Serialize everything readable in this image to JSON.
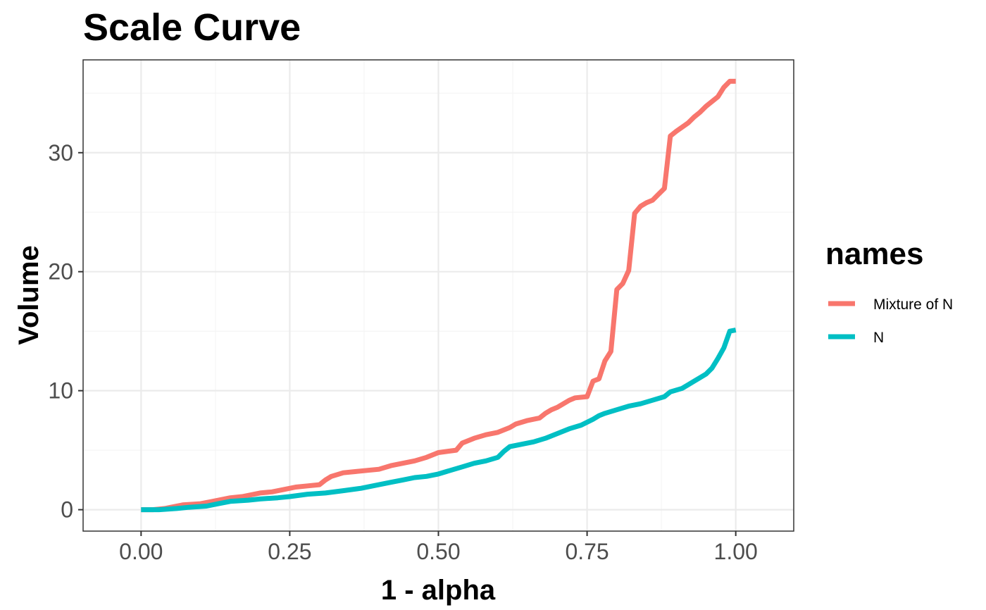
{
  "chart_data": {
    "type": "line",
    "title": "Scale Curve",
    "xlabel": "1 - alpha",
    "ylabel": "Volume",
    "xlim": [
      -0.0975,
      1.0975
    ],
    "ylim": [
      -1.8,
      37.8
    ],
    "x_ticks": [
      0,
      0.25,
      0.5,
      0.75,
      1
    ],
    "x_tick_labels": [
      "0.00",
      "0.25",
      "0.50",
      "0.75",
      "1.00"
    ],
    "y_ticks": [
      0,
      10,
      20,
      30
    ],
    "y_tick_labels": [
      "0",
      "10",
      "20",
      "30"
    ],
    "grid": true,
    "legend": {
      "title": "names",
      "position": "right"
    },
    "series": [
      {
        "name": "Mixture of N",
        "color": "#F8766D",
        "x": [
          0,
          0.02,
          0.04,
          0.05,
          0.07,
          0.1,
          0.12,
          0.15,
          0.17,
          0.2,
          0.22,
          0.24,
          0.26,
          0.28,
          0.3,
          0.31,
          0.32,
          0.34,
          0.36,
          0.38,
          0.4,
          0.42,
          0.44,
          0.46,
          0.48,
          0.5,
          0.53,
          0.54,
          0.56,
          0.58,
          0.6,
          0.62,
          0.63,
          0.65,
          0.67,
          0.68,
          0.69,
          0.7,
          0.72,
          0.73,
          0.75,
          0.76,
          0.77,
          0.78,
          0.79,
          0.8,
          0.81,
          0.82,
          0.83,
          0.84,
          0.85,
          0.86,
          0.87,
          0.88,
          0.89,
          0.9,
          0.92,
          0.93,
          0.94,
          0.95,
          0.96,
          0.97,
          0.98,
          0.99,
          1
        ],
        "values": [
          0,
          0,
          0.1,
          0.2,
          0.4,
          0.5,
          0.7,
          1,
          1.1,
          1.4,
          1.5,
          1.7,
          1.9,
          2,
          2.1,
          2.5,
          2.8,
          3.1,
          3.2,
          3.3,
          3.4,
          3.7,
          3.9,
          4.1,
          4.4,
          4.8,
          5,
          5.6,
          6,
          6.3,
          6.5,
          6.9,
          7.2,
          7.5,
          7.7,
          8.1,
          8.4,
          8.6,
          9.2,
          9.4,
          9.5,
          10.8,
          11,
          12.5,
          13.3,
          18.5,
          19,
          20.1,
          24.9,
          25.5,
          25.8,
          26,
          26.5,
          27,
          31.4,
          31.8,
          32.5,
          33,
          33.4,
          33.9,
          34.3,
          34.7,
          35.5,
          36,
          36
        ]
      },
      {
        "name": "N",
        "color": "#00BFC4",
        "x": [
          0,
          0.03,
          0.06,
          0.08,
          0.11,
          0.13,
          0.15,
          0.18,
          0.2,
          0.23,
          0.25,
          0.28,
          0.31,
          0.34,
          0.37,
          0.4,
          0.42,
          0.44,
          0.46,
          0.48,
          0.5,
          0.52,
          0.54,
          0.56,
          0.58,
          0.6,
          0.61,
          0.62,
          0.64,
          0.66,
          0.68,
          0.7,
          0.72,
          0.74,
          0.76,
          0.77,
          0.78,
          0.8,
          0.82,
          0.84,
          0.86,
          0.88,
          0.89,
          0.91,
          0.92,
          0.93,
          0.94,
          0.95,
          0.96,
          0.97,
          0.98,
          0.99,
          1
        ],
        "values": [
          0,
          0,
          0.1,
          0.2,
          0.3,
          0.5,
          0.7,
          0.8,
          0.9,
          1,
          1.1,
          1.3,
          1.4,
          1.6,
          1.8,
          2.1,
          2.3,
          2.5,
          2.7,
          2.8,
          3,
          3.3,
          3.6,
          3.9,
          4.1,
          4.4,
          4.9,
          5.3,
          5.5,
          5.7,
          6,
          6.4,
          6.8,
          7.1,
          7.6,
          7.9,
          8.1,
          8.4,
          8.7,
          8.9,
          9.2,
          9.5,
          9.9,
          10.2,
          10.5,
          10.8,
          11.1,
          11.4,
          11.9,
          12.7,
          13.6,
          15,
          15.1
        ]
      }
    ]
  }
}
